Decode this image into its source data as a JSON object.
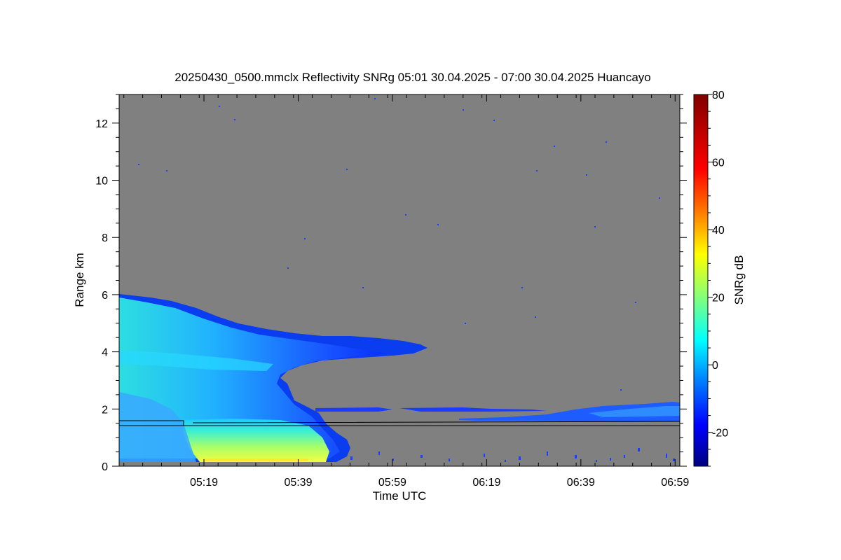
{
  "chart_data": {
    "type": "heatmap",
    "title": "20250430_0500.mmclx Reflectivity SNRg   05:01 30.04.2025 - 07:00 30.04.2025 Huancayo",
    "xlabel": "Time UTC",
    "ylabel": "Range km",
    "xlim": [
      "05:01",
      "07:00"
    ],
    "ylim": [
      0,
      13
    ],
    "x_tick_labels": [
      "05:19",
      "05:39",
      "05:59",
      "06:19",
      "06:39",
      "06:59"
    ],
    "y_tick_labels": [
      "0",
      "2",
      "4",
      "6",
      "8",
      "10",
      "12"
    ],
    "colorbar": {
      "label": "SNRg dB",
      "range": [
        -30,
        80
      ],
      "tick_labels": [
        "-20",
        "0",
        "20",
        "40",
        "60",
        "80"
      ],
      "colormap": "jet"
    },
    "background_color": "#808080",
    "features": [
      {
        "name": "low cloud / rain layer",
        "time_start": "05:01",
        "time_end": "05:51",
        "range_top_km": 6.0,
        "max_snr_db": 40
      },
      {
        "name": "elevated layer",
        "time_start": "05:40",
        "time_end": "06:12",
        "range_km": [
          4.0,
          4.5
        ],
        "max_snr_db": -5
      },
      {
        "name": "thin layer",
        "time_start": "05:52",
        "time_end": "07:00",
        "range_km": [
          1.6,
          2.2
        ],
        "max_snr_db": 0
      }
    ],
    "reference_lines_km": [
      1.4,
      1.55
    ]
  }
}
